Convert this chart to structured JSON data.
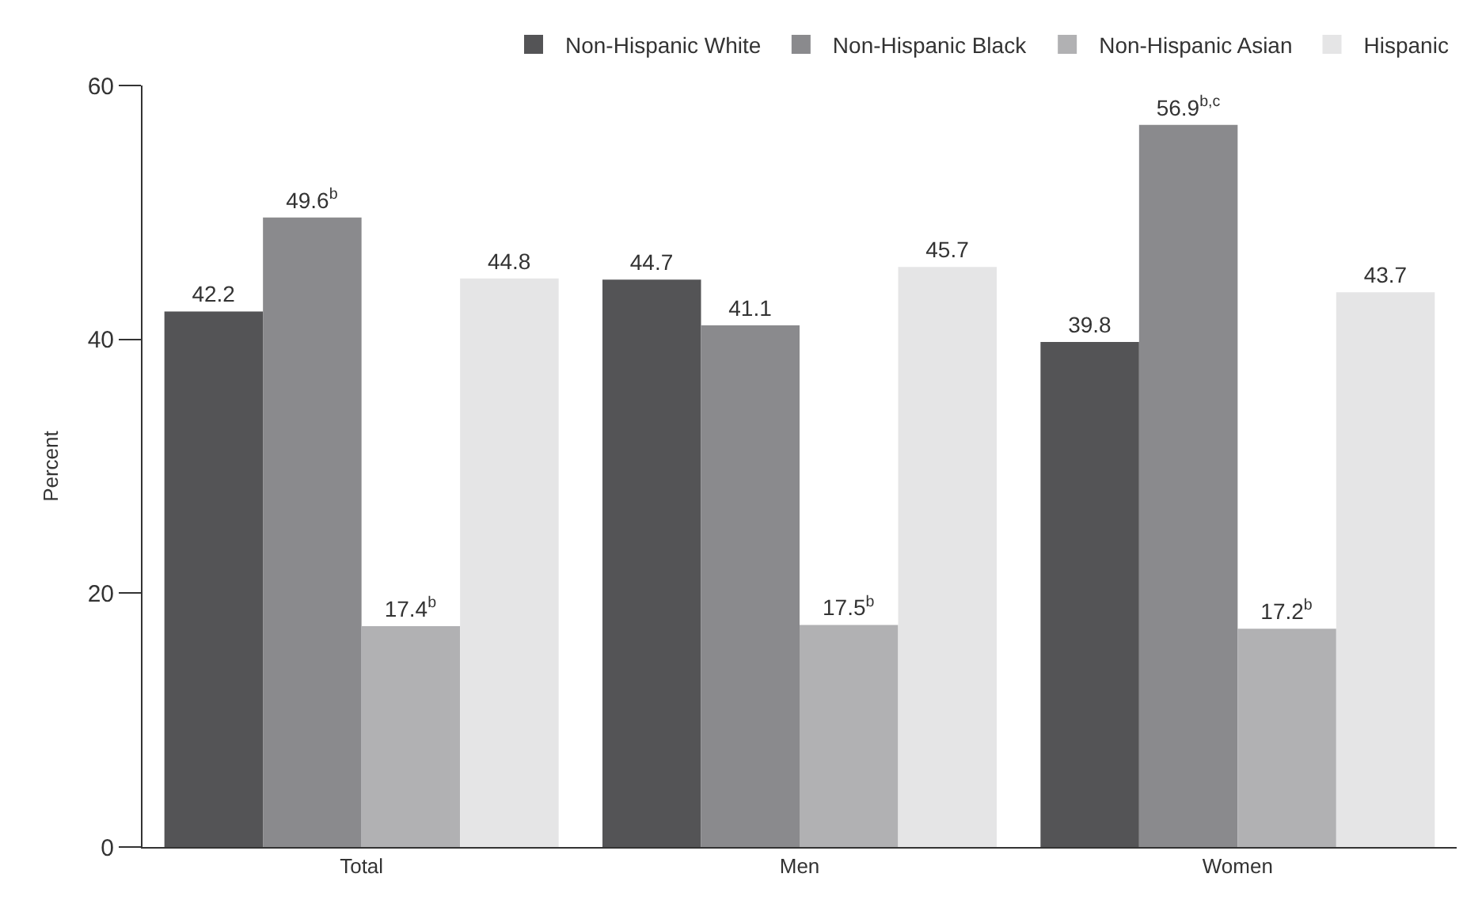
{
  "chart_data": {
    "type": "bar",
    "ylabel": "Percent",
    "categories": [
      "Total",
      "Men",
      "Women"
    ],
    "series": [
      {
        "name": "Non-Hispanic White",
        "color": "#545456",
        "values": [
          42.2,
          44.7,
          39.8
        ],
        "value_labels": [
          "42.2",
          "44.7",
          "39.8"
        ]
      },
      {
        "name": "Non-Hispanic Black",
        "color": "#8a8a8d",
        "values": [
          49.6,
          41.1,
          56.9
        ],
        "value_labels": [
          "49.6$^{b}$",
          "41.1",
          "56.9$^{b,c}$"
        ]
      },
      {
        "name": "Non-Hispanic Asian",
        "color": "#b1b1b3",
        "values": [
          17.4,
          17.5,
          17.2
        ],
        "value_labels": [
          "17.4$^{b}$",
          "17.5$^{b}$",
          "17.2$^{b}$"
        ]
      },
      {
        "name": "Hispanic",
        "color": "#e5e5e6",
        "values": [
          44.8,
          45.7,
          43.7
        ],
        "value_labels": [
          "44.8",
          "45.7",
          "43.7"
        ]
      }
    ],
    "ylim": [
      0,
      60
    ],
    "yticks": [
      0,
      20,
      40,
      60
    ],
    "legend": "top right"
  }
}
